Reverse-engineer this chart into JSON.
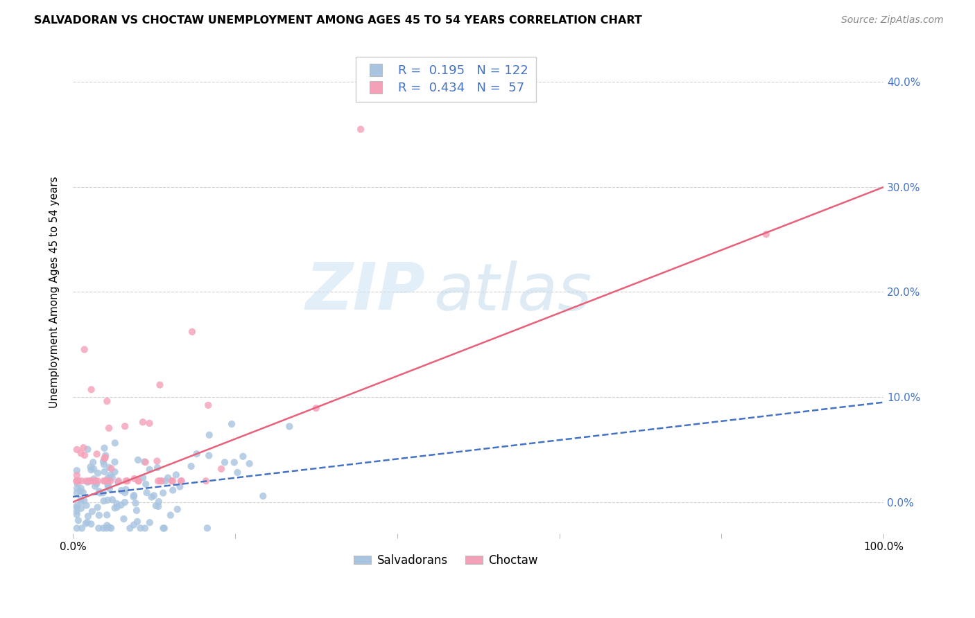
{
  "title": "SALVADORAN VS CHOCTAW UNEMPLOYMENT AMONG AGES 45 TO 54 YEARS CORRELATION CHART",
  "source": "Source: ZipAtlas.com",
  "ylabel": "Unemployment Among Ages 45 to 54 years",
  "xlim": [
    0,
    1.0
  ],
  "ylim": [
    -0.03,
    0.43
  ],
  "salvador_R": 0.195,
  "salvador_N": 122,
  "choctaw_R": 0.434,
  "choctaw_N": 57,
  "salvador_color": "#a8c4e0",
  "choctaw_color": "#f4a0b8",
  "salvador_line_color": "#4472c4",
  "choctaw_line_color": "#e8607a",
  "watermark_zip": "ZIP",
  "watermark_atlas": "atlas",
  "background_color": "#ffffff",
  "grid_color": "#d0d0d0",
  "tick_label_color_right": "#4472c4",
  "legend_salvador_color": "#a8c4e0",
  "legend_choctaw_color": "#f4a0b8",
  "sal_line_intercept": 0.005,
  "sal_line_slope": 0.09,
  "cho_line_intercept": 0.0,
  "cho_line_slope": 0.3
}
